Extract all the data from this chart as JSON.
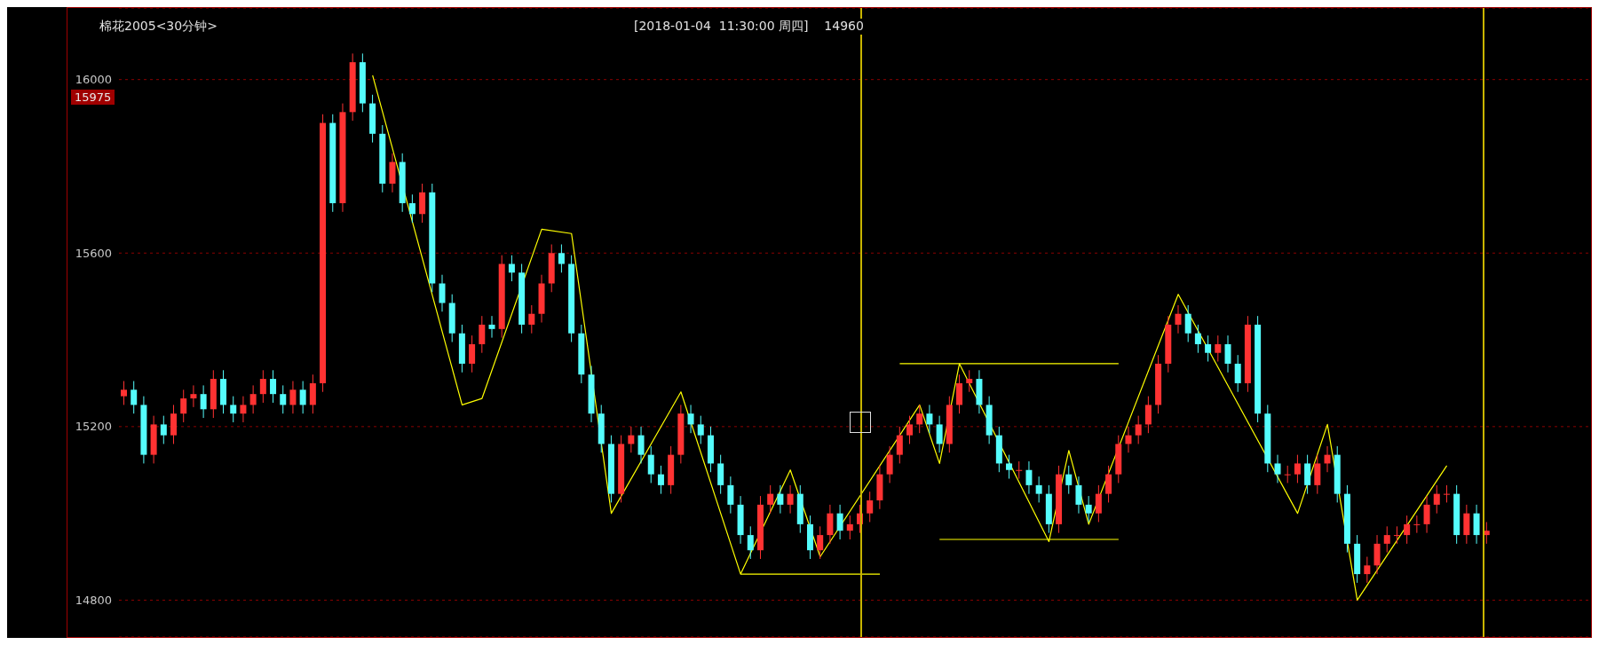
{
  "chart_data": {
    "type": "candlestick",
    "title": "棉花2005<30分钟>",
    "subtitle": "[2018-01-04  11:30:00 周四]    14960",
    "categories": [
      null,
      null,
      null,
      null,
      null,
      null,
      null,
      null,
      null,
      null,
      null,
      null,
      null,
      null,
      null,
      null,
      null,
      null,
      null,
      null,
      null,
      null,
      null,
      null,
      null,
      null,
      null,
      null,
      null,
      null,
      null,
      null,
      null,
      null,
      null,
      null,
      null,
      null,
      null,
      null,
      null,
      null,
      null,
      null,
      null,
      null,
      null,
      null,
      null,
      null,
      null,
      null,
      null,
      null,
      null,
      null,
      null,
      null,
      null,
      null,
      null,
      null,
      null,
      null,
      null,
      null,
      null,
      null,
      null,
      null,
      null,
      null,
      null,
      null,
      null,
      null,
      null,
      null,
      null,
      null,
      null,
      null,
      null,
      null,
      null,
      null,
      null,
      null,
      null,
      null,
      null,
      null,
      null,
      null,
      null,
      null,
      null,
      null,
      null,
      null,
      null,
      null,
      null,
      null,
      null,
      null,
      null,
      null,
      null,
      null,
      null,
      null,
      null,
      null,
      null,
      null,
      null,
      null,
      null,
      null,
      null,
      null,
      null,
      null,
      null,
      null,
      null,
      null,
      null,
      null,
      null,
      null,
      null,
      null,
      null,
      null,
      null,
      null
    ],
    "ohlc": [
      [
        15270,
        15305,
        15250,
        15285
      ],
      [
        15285,
        15305,
        15230,
        15250
      ],
      [
        15250,
        15270,
        15115,
        15135
      ],
      [
        15135,
        15225,
        15115,
        15205
      ],
      [
        15205,
        15225,
        15160,
        15180
      ],
      [
        15180,
        15250,
        15160,
        15230
      ],
      [
        15230,
        15285,
        15210,
        15265
      ],
      [
        15265,
        15295,
        15245,
        15275
      ],
      [
        15275,
        15295,
        15220,
        15240
      ],
      [
        15240,
        15330,
        15220,
        15310
      ],
      [
        15310,
        15330,
        15230,
        15250
      ],
      [
        15250,
        15270,
        15210,
        15230
      ],
      [
        15230,
        15270,
        15210,
        15250
      ],
      [
        15250,
        15295,
        15230,
        15275
      ],
      [
        15275,
        15330,
        15255,
        15310
      ],
      [
        15310,
        15330,
        15255,
        15275
      ],
      [
        15275,
        15295,
        15230,
        15250
      ],
      [
        15250,
        15305,
        15230,
        15285
      ],
      [
        15285,
        15305,
        15230,
        15250
      ],
      [
        15250,
        15320,
        15230,
        15300
      ],
      [
        15300,
        15920,
        15280,
        15900
      ],
      [
        15900,
        15920,
        15695,
        15715
      ],
      [
        15715,
        15945,
        15695,
        15925
      ],
      [
        15925,
        16060,
        15905,
        16040
      ],
      [
        16040,
        16060,
        15925,
        15945
      ],
      [
        15945,
        15965,
        15855,
        15875
      ],
      [
        15875,
        15895,
        15740,
        15760
      ],
      [
        15760,
        15830,
        15740,
        15810
      ],
      [
        15810,
        15830,
        15695,
        15715
      ],
      [
        15715,
        15735,
        15670,
        15690
      ],
      [
        15690,
        15760,
        15670,
        15740
      ],
      [
        15740,
        15760,
        15510,
        15530
      ],
      [
        15530,
        15550,
        15465,
        15485
      ],
      [
        15485,
        15505,
        15395,
        15415
      ],
      [
        15415,
        15435,
        15325,
        15345
      ],
      [
        15345,
        15410,
        15325,
        15390
      ],
      [
        15390,
        15455,
        15370,
        15435
      ],
      [
        15435,
        15455,
        15405,
        15425
      ],
      [
        15425,
        15595,
        15405,
        15575
      ],
      [
        15575,
        15595,
        15535,
        15555
      ],
      [
        15555,
        15575,
        15415,
        15435
      ],
      [
        15435,
        15480,
        15415,
        15460
      ],
      [
        15460,
        15550,
        15440,
        15530
      ],
      [
        15530,
        15620,
        15510,
        15600
      ],
      [
        15600,
        15620,
        15555,
        15575
      ],
      [
        15575,
        15595,
        15395,
        15415
      ],
      [
        15415,
        15435,
        15300,
        15320
      ],
      [
        15320,
        15340,
        15210,
        15230
      ],
      [
        15230,
        15250,
        15140,
        15160
      ],
      [
        15160,
        15180,
        15025,
        15045
      ],
      [
        15045,
        15180,
        15025,
        15160
      ],
      [
        15160,
        15200,
        15140,
        15180
      ],
      [
        15180,
        15200,
        15115,
        15135
      ],
      [
        15135,
        15155,
        15070,
        15090
      ],
      [
        15090,
        15110,
        15045,
        15065
      ],
      [
        15065,
        15155,
        15045,
        15135
      ],
      [
        15135,
        15250,
        15115,
        15230
      ],
      [
        15230,
        15250,
        15185,
        15205
      ],
      [
        15205,
        15225,
        15160,
        15180
      ],
      [
        15180,
        15200,
        15095,
        15115
      ],
      [
        15115,
        15135,
        15045,
        15065
      ],
      [
        15065,
        15085,
        15000,
        15020
      ],
      [
        15020,
        15040,
        14930,
        14950
      ],
      [
        14950,
        14970,
        14895,
        14915
      ],
      [
        14915,
        15040,
        14895,
        15020
      ],
      [
        15020,
        15065,
        15000,
        15045
      ],
      [
        15045,
        15065,
        15000,
        15020
      ],
      [
        15020,
        15065,
        15000,
        15045
      ],
      [
        15045,
        15065,
        14955,
        14975
      ],
      [
        14975,
        14995,
        14895,
        14915
      ],
      [
        14915,
        14970,
        14895,
        14950
      ],
      [
        14950,
        15020,
        14930,
        15000
      ],
      [
        15000,
        15020,
        14940,
        14960
      ],
      [
        14960,
        14995,
        14940,
        14975
      ],
      [
        14975,
        15020,
        14955,
        15000
      ],
      [
        15000,
        15050,
        14980,
        15030
      ],
      [
        15030,
        15110,
        15010,
        15090
      ],
      [
        15090,
        15155,
        15070,
        15135
      ],
      [
        15135,
        15200,
        15115,
        15180
      ],
      [
        15180,
        15225,
        15160,
        15205
      ],
      [
        15205,
        15250,
        15185,
        15230
      ],
      [
        15230,
        15250,
        15185,
        15205
      ],
      [
        15205,
        15225,
        15140,
        15160
      ],
      [
        15160,
        15270,
        15140,
        15250
      ],
      [
        15250,
        15320,
        15230,
        15300
      ],
      [
        15300,
        15330,
        15280,
        15310
      ],
      [
        15310,
        15330,
        15230,
        15250
      ],
      [
        15250,
        15270,
        15160,
        15180
      ],
      [
        15180,
        15200,
        15095,
        15115
      ],
      [
        15115,
        15135,
        15080,
        15100
      ],
      [
        15100,
        15120,
        15080,
        15100
      ],
      [
        15100,
        15120,
        15045,
        15065
      ],
      [
        15065,
        15085,
        15025,
        15045
      ],
      [
        15045,
        15065,
        14955,
        14975
      ],
      [
        14975,
        15110,
        14955,
        15090
      ],
      [
        15090,
        15110,
        15045,
        15065
      ],
      [
        15065,
        15085,
        15000,
        15020
      ],
      [
        15020,
        15040,
        14980,
        15000
      ],
      [
        15000,
        15065,
        14980,
        15045
      ],
      [
        15045,
        15110,
        15025,
        15090
      ],
      [
        15090,
        15180,
        15070,
        15160
      ],
      [
        15160,
        15200,
        15140,
        15180
      ],
      [
        15180,
        15225,
        15160,
        15205
      ],
      [
        15205,
        15270,
        15185,
        15250
      ],
      [
        15250,
        15365,
        15230,
        15345
      ],
      [
        15345,
        15455,
        15325,
        15435
      ],
      [
        15435,
        15480,
        15415,
        15460
      ],
      [
        15460,
        15480,
        15395,
        15415
      ],
      [
        15415,
        15435,
        15370,
        15390
      ],
      [
        15390,
        15410,
        15350,
        15370
      ],
      [
        15370,
        15410,
        15350,
        15390
      ],
      [
        15390,
        15410,
        15325,
        15345
      ],
      [
        15345,
        15365,
        15280,
        15300
      ],
      [
        15300,
        15455,
        15280,
        15435
      ],
      [
        15435,
        15455,
        15210,
        15230
      ],
      [
        15230,
        15250,
        15095,
        15115
      ],
      [
        15115,
        15135,
        15070,
        15090
      ],
      [
        15090,
        15110,
        15070,
        15090
      ],
      [
        15090,
        15135,
        15070,
        15115
      ],
      [
        15115,
        15135,
        15045,
        15065
      ],
      [
        15065,
        15135,
        15045,
        15115
      ],
      [
        15115,
        15155,
        15095,
        15135
      ],
      [
        15135,
        15155,
        15025,
        15045
      ],
      [
        15045,
        15065,
        14910,
        14930
      ],
      [
        14930,
        14950,
        14840,
        14860
      ],
      [
        14860,
        14900,
        14840,
        14880
      ],
      [
        14880,
        14950,
        14860,
        14930
      ],
      [
        14930,
        14970,
        14910,
        14950
      ],
      [
        14950,
        14970,
        14930,
        14950
      ],
      [
        14950,
        14995,
        14930,
        14975
      ],
      [
        14975,
        14995,
        14955,
        14975
      ],
      [
        14975,
        15040,
        14955,
        15020
      ],
      [
        15020,
        15065,
        15000,
        15045
      ],
      [
        15045,
        15065,
        15025,
        15045
      ],
      [
        15045,
        15065,
        14930,
        14950
      ],
      [
        14950,
        15020,
        14930,
        15000
      ],
      [
        15000,
        15020,
        14930,
        14950
      ],
      [
        14950,
        14980,
        14930,
        14960
      ]
    ],
    "colors": [
      "#ff3232",
      "#54fcfc",
      "#54fcfc",
      "#ff3232",
      "#54fcfc",
      "#ff3232",
      "#ff3232",
      "#ff3232",
      "#54fcfc",
      "#ff3232",
      "#54fcfc",
      "#54fcfc",
      "#ff3232",
      "#ff3232",
      "#ff3232",
      "#54fcfc",
      "#54fcfc",
      "#ff3232",
      "#54fcfc",
      "#ff3232",
      "#ff3232",
      "#54fcfc",
      "#ff3232",
      "#ff3232",
      "#54fcfc",
      "#54fcfc",
      "#54fcfc",
      "#ff3232",
      "#54fcfc",
      "#54fcfc",
      "#ff3232",
      "#54fcfc",
      "#54fcfc",
      "#54fcfc",
      "#54fcfc",
      "#ff3232",
      "#ff3232",
      "#54fcfc",
      "#ff3232",
      "#54fcfc",
      "#54fcfc",
      "#ff3232",
      "#ff3232",
      "#ff3232",
      "#54fcfc",
      "#54fcfc",
      "#54fcfc",
      "#54fcfc",
      "#54fcfc",
      "#54fcfc",
      "#ff3232",
      "#ff3232",
      "#54fcfc",
      "#54fcfc",
      "#54fcfc",
      "#ff3232",
      "#ff3232",
      "#54fcfc",
      "#54fcfc",
      "#54fcfc",
      "#54fcfc",
      "#54fcfc",
      "#54fcfc",
      "#54fcfc",
      "#ff3232",
      "#ff3232",
      "#54fcfc",
      "#ff3232",
      "#54fcfc",
      "#54fcfc",
      "#ff3232",
      "#ff3232",
      "#54fcfc",
      "#ff3232",
      "#ff3232",
      "#ff3232",
      "#ff3232",
      "#ff3232",
      "#ff3232",
      "#ff3232",
      "#ff3232",
      "#54fcfc",
      "#54fcfc",
      "#ff3232",
      "#ff3232",
      "#ff3232",
      "#54fcfc",
      "#54fcfc",
      "#54fcfc",
      "#54fcfc",
      "#ff3232",
      "#54fcfc",
      "#54fcfc",
      "#54fcfc",
      "#ff3232",
      "#54fcfc",
      "#54fcfc",
      "#54fcfc",
      "#ff3232",
      "#ff3232",
      "#ff3232",
      "#ff3232",
      "#ff3232",
      "#ff3232",
      "#ff3232",
      "#ff3232",
      "#ff3232",
      "#54fcfc",
      "#54fcfc",
      "#54fcfc",
      "#ff3232",
      "#54fcfc",
      "#54fcfc",
      "#ff3232",
      "#54fcfc",
      "#54fcfc",
      "#54fcfc",
      "#ff3232",
      "#ff3232",
      "#54fcfc",
      "#ff3232",
      "#ff3232",
      "#54fcfc",
      "#54fcfc",
      "#54fcfc",
      "#ff3232",
      "#ff3232",
      "#ff3232",
      "#ff3232",
      "#ff3232",
      "#ff3232",
      "#ff3232",
      "#ff3232",
      "#ff3232",
      "#54fcfc",
      "#ff3232",
      "#54fcfc",
      "#ff3232"
    ],
    "series": [
      {
        "type": "line",
        "color": "#ffff00",
        "values": [
          null,
          null,
          null,
          null,
          null,
          null,
          null,
          null,
          null,
          null,
          null,
          null,
          null,
          null,
          null,
          null,
          null,
          null,
          null,
          null,
          null,
          null,
          null,
          null,
          null,
          16010,
          null,
          null,
          null,
          null,
          null,
          null,
          null,
          null,
          15250,
          null,
          15265,
          null,
          null,
          null,
          null,
          null,
          15655,
          null,
          null,
          15645,
          null,
          null,
          null,
          15000,
          null,
          null,
          null,
          null,
          null,
          null,
          15280,
          null,
          null,
          null,
          null,
          null,
          14860,
          null,
          null,
          null,
          null,
          15100,
          null,
          null,
          14900,
          null,
          null,
          null,
          null,
          null,
          null,
          null,
          null,
          null,
          15250,
          null,
          15115,
          null,
          15345,
          null,
          null,
          null,
          null,
          null,
          null,
          null,
          null,
          14935,
          null,
          15145,
          null,
          14975,
          null,
          null,
          null,
          null,
          null,
          null,
          null,
          null,
          15505,
          null,
          null,
          null,
          null,
          null,
          null,
          null,
          null,
          null,
          null,
          null,
          15000,
          null,
          null,
          15205,
          null,
          null,
          14800,
          null,
          null,
          null,
          null,
          null,
          null,
          null,
          null,
          15110,
          null,
          null,
          null,
          null
        ]
      },
      {
        "type": "line",
        "color": "#ffff00",
        "values": [
          null,
          null,
          null,
          null,
          null,
          null,
          null,
          null,
          null,
          null,
          null,
          null,
          null,
          null,
          null,
          null,
          null,
          null,
          null,
          null,
          null,
          null,
          null,
          null,
          null,
          null,
          null,
          null,
          null,
          null,
          null,
          null,
          null,
          null,
          null,
          null,
          null,
          null,
          null,
          null,
          null,
          null,
          null,
          null,
          null,
          null,
          null,
          null,
          null,
          null,
          null,
          null,
          null,
          null,
          null,
          null,
          null,
          null,
          null,
          null,
          null,
          null,
          14860,
          null,
          null,
          null,
          null,
          null,
          null,
          null,
          null,
          null,
          null,
          null,
          null,
          null,
          14860,
          null,
          null,
          null,
          null,
          null,
          null,
          null,
          null,
          null,
          null,
          null,
          null,
          null,
          null,
          null,
          null,
          null,
          null,
          null,
          null,
          null,
          null,
          null,
          null,
          null,
          null,
          null,
          null,
          null,
          null,
          null,
          null,
          null,
          null,
          null,
          null,
          null,
          null,
          null,
          null,
          null,
          null,
          null,
          null,
          null,
          null,
          null,
          null,
          null,
          null,
          null,
          null,
          null,
          null,
          null,
          null,
          null,
          null,
          null,
          null,
          null
        ]
      },
      {
        "type": "line",
        "color": "#ffff00",
        "values": [
          null,
          null,
          null,
          null,
          null,
          null,
          null,
          null,
          null,
          null,
          null,
          null,
          null,
          null,
          null,
          null,
          null,
          null,
          null,
          null,
          null,
          null,
          null,
          null,
          null,
          null,
          null,
          null,
          null,
          null,
          null,
          null,
          null,
          null,
          null,
          null,
          null,
          null,
          null,
          null,
          null,
          null,
          null,
          null,
          null,
          null,
          null,
          null,
          null,
          null,
          null,
          null,
          null,
          null,
          null,
          null,
          null,
          null,
          null,
          null,
          null,
          null,
          null,
          null,
          null,
          null,
          null,
          null,
          null,
          null,
          null,
          null,
          null,
          null,
          null,
          null,
          null,
          null,
          15345,
          null,
          null,
          null,
          null,
          null,
          null,
          null,
          null,
          null,
          null,
          null,
          null,
          null,
          null,
          null,
          null,
          null,
          null,
          null,
          null,
          null,
          15345,
          null,
          null,
          null,
          null,
          null,
          null,
          null,
          null,
          null,
          null,
          null,
          null,
          null,
          null,
          null,
          null,
          null,
          null,
          null,
          null,
          null,
          null,
          null,
          null,
          null,
          null,
          null,
          null,
          null,
          null,
          null,
          null,
          null,
          null,
          null,
          null,
          null
        ]
      },
      {
        "type": "line",
        "color": "#ffff00",
        "values": [
          null,
          null,
          null,
          null,
          null,
          null,
          null,
          null,
          null,
          null,
          null,
          null,
          null,
          null,
          null,
          null,
          null,
          null,
          null,
          null,
          null,
          null,
          null,
          null,
          null,
          null,
          null,
          null,
          null,
          null,
          null,
          null,
          null,
          null,
          null,
          null,
          null,
          null,
          null,
          null,
          null,
          null,
          null,
          null,
          null,
          null,
          null,
          null,
          null,
          null,
          null,
          null,
          null,
          null,
          null,
          null,
          null,
          null,
          null,
          null,
          null,
          null,
          null,
          null,
          null,
          null,
          null,
          null,
          null,
          null,
          null,
          null,
          null,
          null,
          null,
          null,
          null,
          null,
          null,
          null,
          null,
          null,
          14940,
          null,
          null,
          null,
          null,
          null,
          null,
          null,
          null,
          null,
          null,
          null,
          null,
          null,
          null,
          null,
          null,
          null,
          14940,
          null,
          null,
          null,
          null,
          null,
          null,
          null,
          null,
          null,
          null,
          null,
          null,
          null,
          null,
          null,
          null,
          null,
          null,
          null,
          null,
          null,
          null,
          null,
          null,
          null,
          null,
          null,
          null,
          null,
          null,
          null,
          null,
          null,
          null,
          null,
          null,
          null
        ]
      }
    ],
    "ylim": [
      14715,
      16165
    ],
    "yticks": [
      14800,
      15200,
      15600,
      16000
    ],
    "grid": "y",
    "tick_labels": "y",
    "annotations": [
      "15975"
    ]
  }
}
